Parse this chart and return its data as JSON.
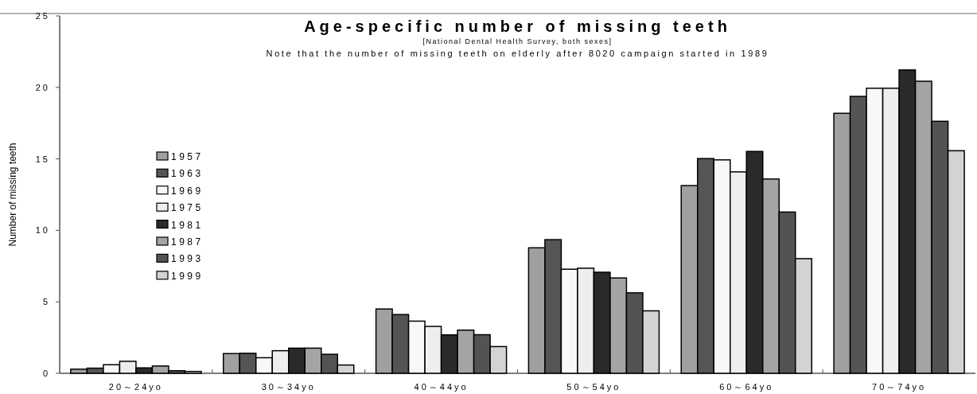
{
  "chart_data": {
    "type": "bar",
    "title": "Age-specific number of missing teeth",
    "subtitle": "[National Dental Health Survey, both sexes]",
    "annotations": [
      "Note that the number of missing teeth on elderly after 8020 campaign started in 1989"
    ],
    "ylabel": "Number of missing teeth",
    "categories": [
      "20～24yo",
      "30～34yo",
      "40～44yo",
      "50～54yo",
      "60～64yo",
      "70～74yo"
    ],
    "series": [
      {
        "name": "1957",
        "color": "#a0a0a0",
        "values": [
          0.29,
          1.38,
          4.5,
          8.78,
          13.13,
          18.19
        ]
      },
      {
        "name": "1963",
        "color": "#555555",
        "values": [
          0.36,
          1.4,
          4.11,
          9.35,
          15.02,
          19.37
        ]
      },
      {
        "name": "1969",
        "color": "#f8f8f8",
        "values": [
          0.6,
          1.09,
          3.65,
          7.28,
          14.93,
          19.94
        ]
      },
      {
        "name": "1975",
        "color": "#eeeeee",
        "values": [
          0.84,
          1.58,
          3.28,
          7.35,
          14.09,
          19.94
        ]
      },
      {
        "name": "1981",
        "color": "#2a2a2a",
        "values": [
          0.38,
          1.76,
          2.69,
          7.07,
          15.52,
          21.22
        ]
      },
      {
        "name": "1987",
        "color": "#a4a4a4",
        "values": [
          0.51,
          1.76,
          3.02,
          6.67,
          13.59,
          20.43
        ]
      },
      {
        "name": "1993",
        "color": "#535353",
        "values": [
          0.18,
          1.33,
          2.7,
          5.63,
          11.28,
          17.63
        ]
      },
      {
        "name": "1999",
        "color": "#d3d3d3",
        "values": [
          0.13,
          0.58,
          1.87,
          4.37,
          8.02,
          15.57
        ]
      }
    ],
    "ylim": [
      0,
      25
    ],
    "yticks": [
      0,
      5,
      10,
      15,
      20,
      25
    ],
    "grid": false,
    "legend": "left"
  }
}
